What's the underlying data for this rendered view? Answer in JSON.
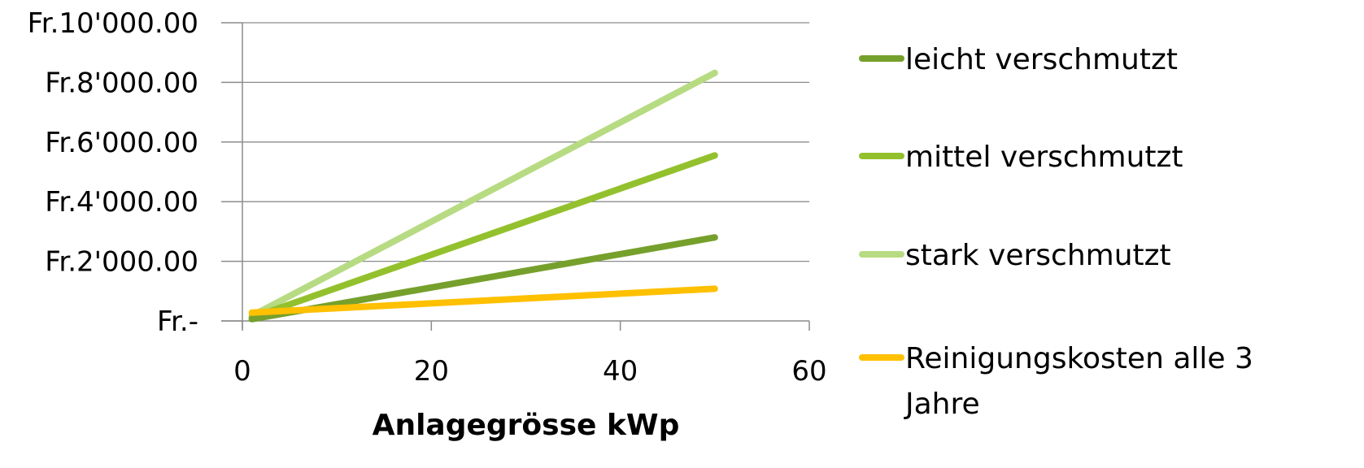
{
  "chart_data": {
    "type": "line",
    "title": "",
    "xlabel": "Anlagegrösse kWp",
    "ylabel": "",
    "xlim": [
      0,
      60
    ],
    "ylim": [
      0,
      10000
    ],
    "x_ticks": [
      0,
      20,
      40,
      60
    ],
    "x_tick_labels": [
      "0",
      "20",
      "40",
      "60"
    ],
    "y_ticks": [
      0,
      2000,
      4000,
      6000,
      8000,
      10000
    ],
    "y_tick_labels": [
      "Fr.-",
      "Fr.2'000.00",
      "Fr.4'000.00",
      "Fr.6'000.00",
      "Fr.8'000.00",
      "Fr.10'000.00"
    ],
    "grid": "horizontal",
    "legend_position": "right",
    "series": [
      {
        "name": "leicht verschmutzt",
        "color": "#76a02c",
        "x": [
          1,
          50
        ],
        "y": [
          60,
          2800
        ]
      },
      {
        "name": "mittel verschmutzt",
        "color": "#93c12d",
        "x": [
          1,
          50
        ],
        "y": [
          110,
          5550
        ]
      },
      {
        "name": "stark verschmutzt",
        "color": "#b7db82",
        "x": [
          1,
          50
        ],
        "y": [
          170,
          8320
        ]
      },
      {
        "name": "Reinigungskosten alle 3 Jahre",
        "legend_lines": [
          "Reinigungskosten alle 3",
          "Jahre"
        ],
        "color": "#ffc000",
        "x": [
          1,
          50
        ],
        "y": [
          280,
          1080
        ]
      }
    ]
  }
}
